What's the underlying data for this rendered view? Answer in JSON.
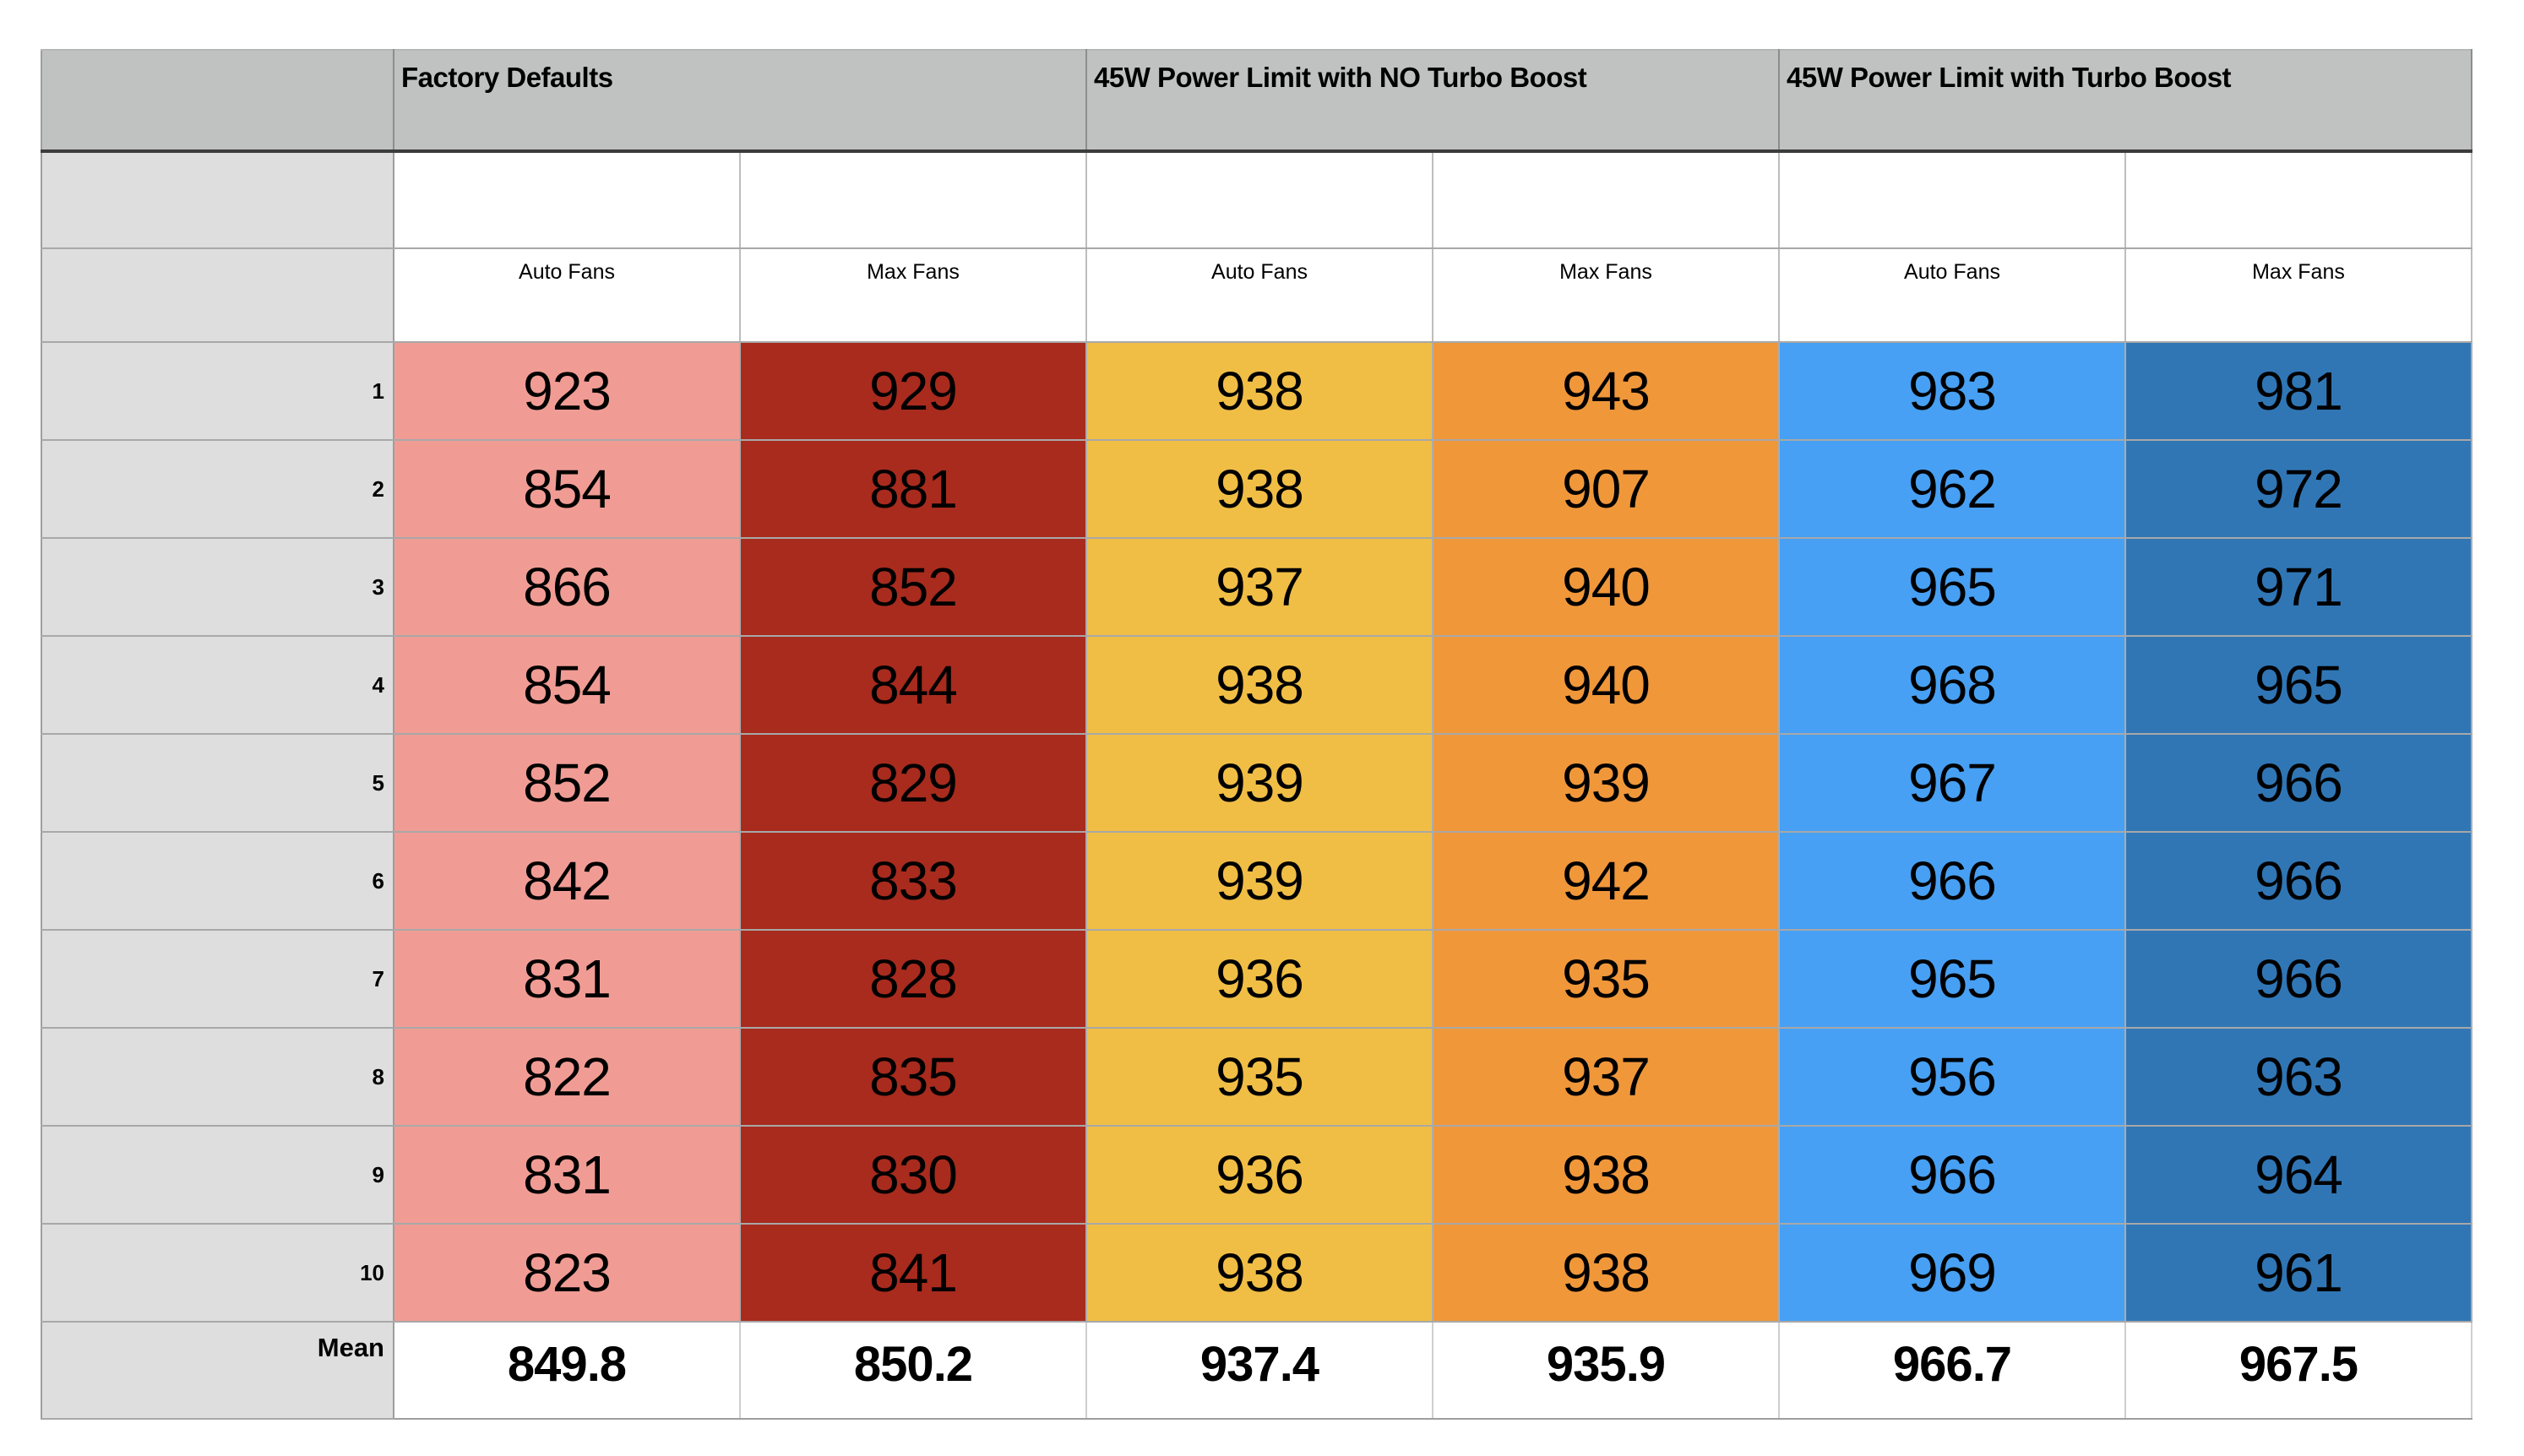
{
  "table": {
    "corner_label": "",
    "header_bg": "#C0C1C1",
    "label_col_bg": "#DEDEDE",
    "groups": [
      {
        "label": "Factory Defaults",
        "subcolumns": [
          "Auto Fans",
          "Max Fans"
        ]
      },
      {
        "label": "45W Power Limit with NO Turbo Boost",
        "subcolumns": [
          "Auto Fans",
          "Max Fans"
        ]
      },
      {
        "label": "45W Power Limit with Turbo Boost",
        "subcolumns": [
          "Auto Fans",
          "Max Fans"
        ]
      }
    ],
    "column_colors": [
      "#F09C94",
      "#A82B1E",
      "#F0BE45",
      "#F0973A",
      "#47A0F3",
      "#3076B5"
    ],
    "rows": [
      {
        "label": "1",
        "values": [
          "923",
          "929",
          "938",
          "943",
          "983",
          "981"
        ]
      },
      {
        "label": "2",
        "values": [
          "854",
          "881",
          "938",
          "907",
          "962",
          "972"
        ]
      },
      {
        "label": "3",
        "values": [
          "866",
          "852",
          "937",
          "940",
          "965",
          "971"
        ]
      },
      {
        "label": "4",
        "values": [
          "854",
          "844",
          "938",
          "940",
          "968",
          "965"
        ]
      },
      {
        "label": "5",
        "values": [
          "852",
          "829",
          "939",
          "939",
          "967",
          "966"
        ]
      },
      {
        "label": "6",
        "values": [
          "842",
          "833",
          "939",
          "942",
          "966",
          "966"
        ]
      },
      {
        "label": "7",
        "values": [
          "831",
          "828",
          "936",
          "935",
          "965",
          "966"
        ]
      },
      {
        "label": "8",
        "values": [
          "822",
          "835",
          "935",
          "937",
          "956",
          "963"
        ]
      },
      {
        "label": "9",
        "values": [
          "831",
          "830",
          "936",
          "938",
          "966",
          "964"
        ]
      },
      {
        "label": "10",
        "values": [
          "823",
          "841",
          "938",
          "938",
          "969",
          "961"
        ]
      }
    ],
    "mean_row": {
      "label": "Mean",
      "values": [
        "849.8",
        "850.2",
        "937.4",
        "935.9",
        "966.7",
        "967.5"
      ]
    }
  },
  "chart_data": {
    "type": "table",
    "title": "",
    "column_groups": [
      "Factory Defaults",
      "45W Power Limit with NO Turbo Boost",
      "45W Power Limit with Turbo Boost"
    ],
    "subcolumns_per_group": [
      "Auto Fans",
      "Max Fans"
    ],
    "row_labels": [
      "1",
      "2",
      "3",
      "4",
      "5",
      "6",
      "7",
      "8",
      "9",
      "10",
      "Mean"
    ],
    "values": [
      [
        923,
        929,
        938,
        943,
        983,
        981
      ],
      [
        854,
        881,
        938,
        907,
        962,
        972
      ],
      [
        866,
        852,
        937,
        940,
        965,
        971
      ],
      [
        854,
        844,
        938,
        940,
        968,
        965
      ],
      [
        852,
        829,
        939,
        939,
        967,
        966
      ],
      [
        842,
        833,
        939,
        942,
        966,
        966
      ],
      [
        831,
        828,
        936,
        935,
        965,
        966
      ],
      [
        822,
        835,
        935,
        937,
        956,
        963
      ],
      [
        831,
        830,
        936,
        938,
        966,
        964
      ],
      [
        823,
        841,
        938,
        938,
        969,
        961
      ],
      [
        849.8,
        850.2,
        937.4,
        935.9,
        966.7,
        967.5
      ]
    ]
  }
}
